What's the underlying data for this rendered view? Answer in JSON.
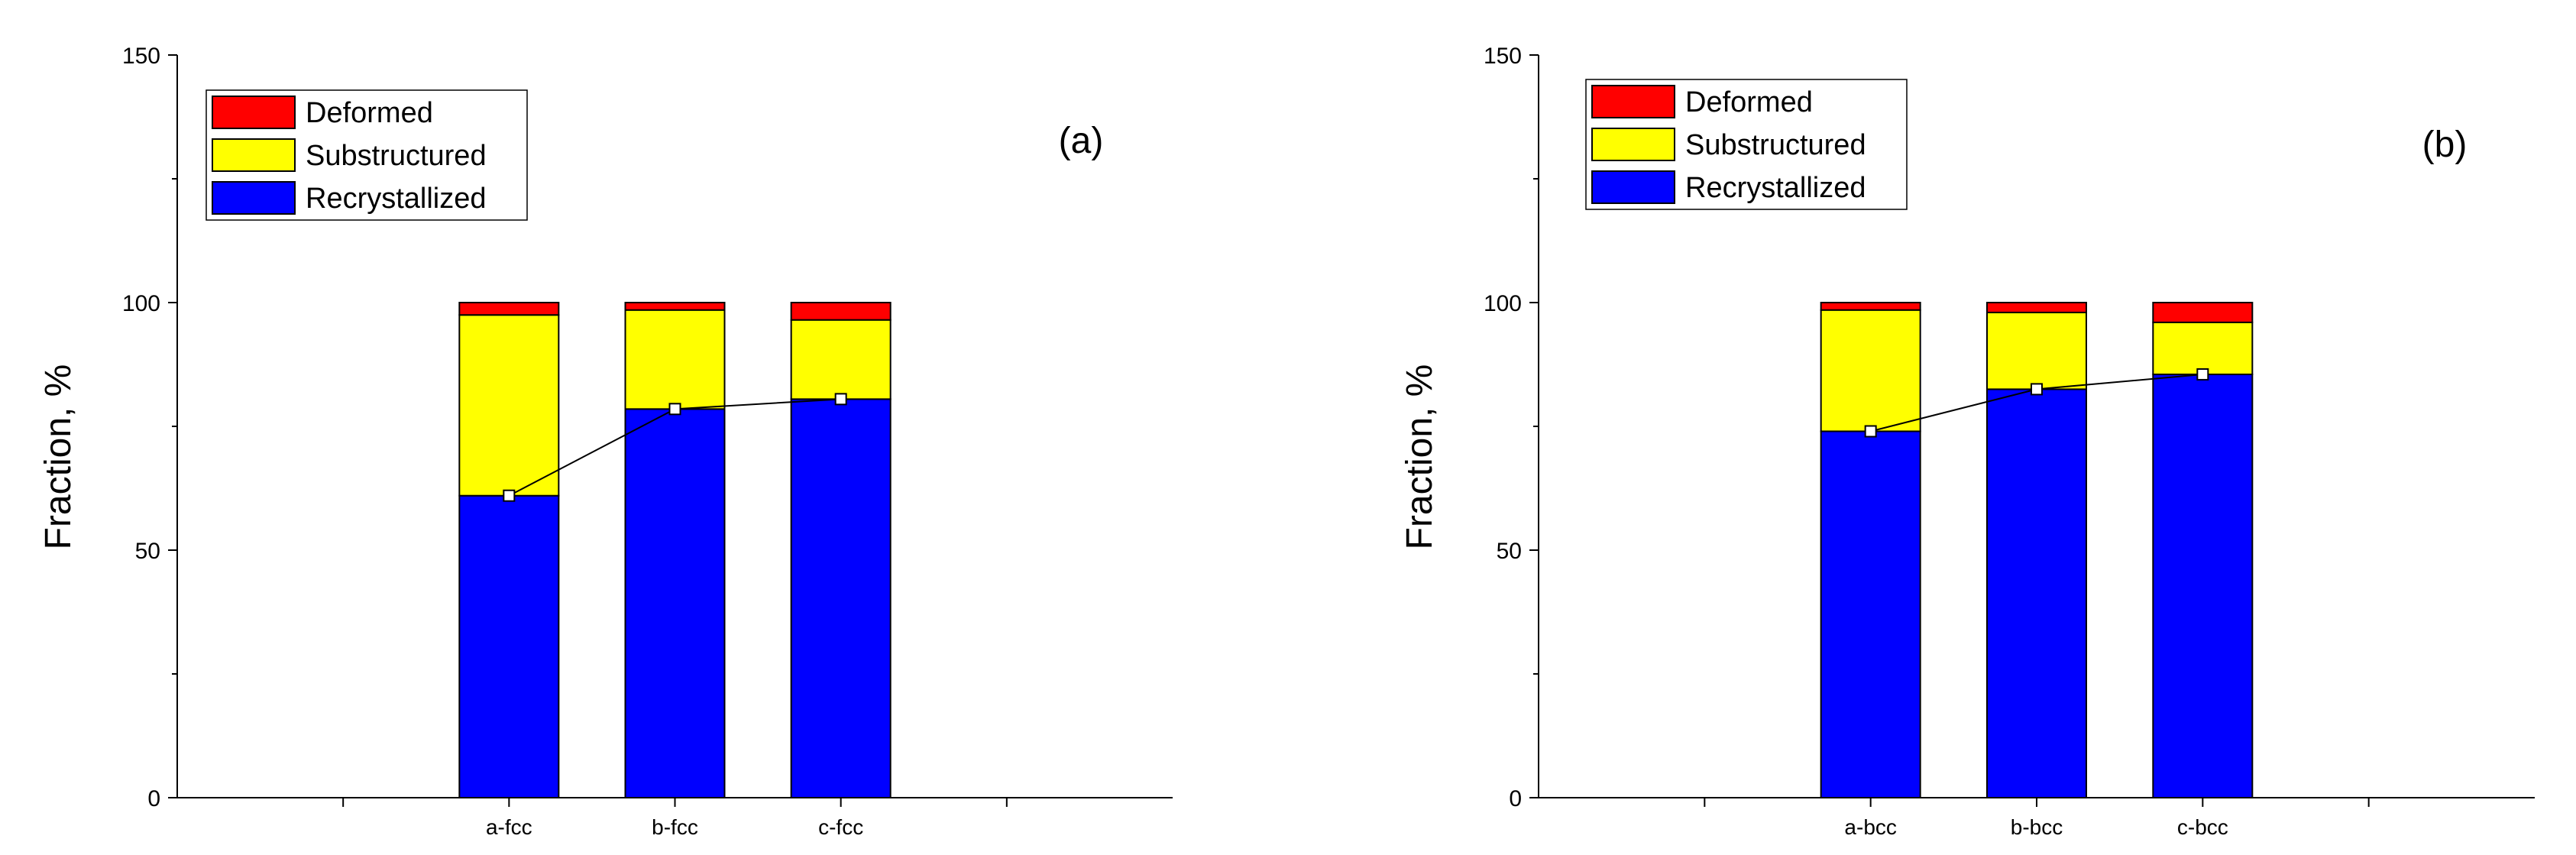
{
  "chart_data": [
    {
      "type": "bar",
      "stacked": true,
      "panel_label": "(a)",
      "categories": [
        "a-fcc",
        "b-fcc",
        "c-fcc"
      ],
      "series": [
        {
          "name": "Recrystallized",
          "color": "#0000FF",
          "values": [
            61,
            78.5,
            80.5
          ]
        },
        {
          "name": "Substructured",
          "color": "#FFFF00",
          "values": [
            36.5,
            20,
            16
          ]
        },
        {
          "name": "Deformed",
          "color": "#FF0000",
          "values": [
            2.5,
            1.5,
            3.5
          ]
        }
      ],
      "overlay_line": {
        "marker": "open-square",
        "color": "#000000",
        "values": [
          61,
          78.5,
          80.5
        ]
      },
      "xlabel": "",
      "ylabel": "Fraction, %",
      "ylim": [
        0,
        150
      ],
      "yticks": [
        "0",
        "50",
        "100",
        "150"
      ],
      "legend": {
        "placement": "top-left",
        "order": [
          "Deformed",
          "Substructured",
          "Recrystallized"
        ]
      },
      "grid": false
    },
    {
      "type": "bar",
      "stacked": true,
      "panel_label": "(b)",
      "categories": [
        "a-bcc",
        "b-bcc",
        "c-bcc"
      ],
      "series": [
        {
          "name": "Recrystallized",
          "color": "#0000FF",
          "values": [
            74,
            82.5,
            85.5
          ]
        },
        {
          "name": "Substructured",
          "color": "#FFFF00",
          "values": [
            24.5,
            15.5,
            10.5
          ]
        },
        {
          "name": "Deformed",
          "color": "#FF0000",
          "values": [
            1.5,
            2,
            4
          ]
        }
      ],
      "overlay_line": {
        "marker": "open-square",
        "color": "#000000",
        "values": [
          74,
          82.5,
          85.5
        ]
      },
      "xlabel": "",
      "ylabel": "Fraction, %",
      "ylim": [
        0,
        150
      ],
      "yticks": [
        "0",
        "50",
        "100",
        "150"
      ],
      "legend": {
        "placement": "top-left",
        "order": [
          "Deformed",
          "Substructured",
          "Recrystallized"
        ]
      },
      "grid": false
    }
  ]
}
